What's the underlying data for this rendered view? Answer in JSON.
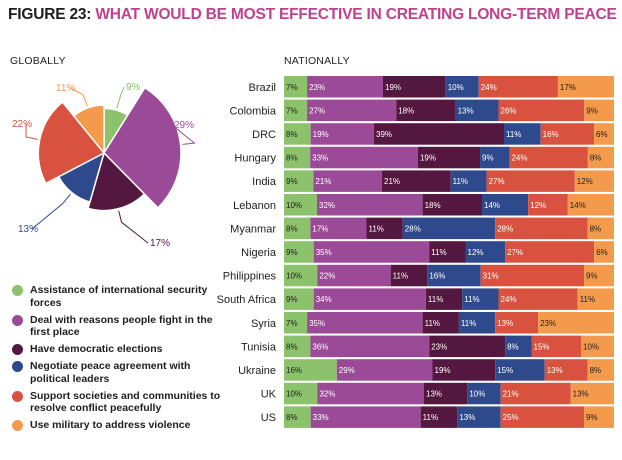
{
  "figure": {
    "number": "FIGURE 23:",
    "title": "WHAT WOULD BE MOST EFFECTIVE IN CREATING LONG-TERM PEACE",
    "globally_label": "GLOBALLY",
    "nationally_label": "NATIONALLY"
  },
  "colors": {
    "title_accent": "#c0418c",
    "assistance": "#8cc26b",
    "deal": "#9b4a97",
    "elections": "#54173f",
    "negotiate": "#2f4a8c",
    "support": "#d9523f",
    "military": "#f39a4c"
  },
  "legend": [
    {
      "key": "assistance",
      "label": "Assistance of international security forces"
    },
    {
      "key": "deal",
      "label": "Deal with reasons people fight in the first place"
    },
    {
      "key": "elections",
      "label": "Have democratic elections"
    },
    {
      "key": "negotiate",
      "label": "Negotiate peace agreement with political leaders"
    },
    {
      "key": "support",
      "label": "Support societies and communities to resolve conflict peacefully"
    },
    {
      "key": "military",
      "label": "Use military to address violence"
    }
  ],
  "chart_data": [
    {
      "type": "pie",
      "title": "GLOBALLY",
      "note": "radial (variable-radius) pie",
      "categories": [
        "Assistance of international security forces",
        "Deal with reasons people fight in the first place",
        "Have democratic elections",
        "Negotiate peace agreement with political leaders",
        "Support societies and communities to resolve conflict peacefully",
        "Use military to address violence"
      ],
      "keys": [
        "assistance",
        "deal",
        "elections",
        "negotiate",
        "support",
        "military"
      ],
      "values": [
        9,
        29,
        17,
        13,
        22,
        11
      ],
      "labels": [
        "9%",
        "29%",
        "17%",
        "13%",
        "22%",
        "11%"
      ]
    },
    {
      "type": "bar",
      "orientation": "horizontal-stacked-100",
      "title": "NATIONALLY",
      "categories": [
        "Brazil",
        "Colombia",
        "DRC",
        "Hungary",
        "India",
        "Lebanon",
        "Myanmar",
        "Nigeria",
        "Philippines",
        "South Africa",
        "Syria",
        "Tunisia",
        "Ukraine",
        "UK",
        "US"
      ],
      "series": [
        {
          "name": "Assistance of international security forces",
          "key": "assistance",
          "values": [
            7,
            7,
            8,
            8,
            9,
            10,
            8,
            9,
            10,
            9,
            7,
            8,
            16,
            10,
            8
          ]
        },
        {
          "name": "Deal with reasons people fight in the first place",
          "key": "deal",
          "values": [
            23,
            27,
            19,
            33,
            21,
            32,
            17,
            35,
            22,
            34,
            35,
            36,
            29,
            32,
            33
          ]
        },
        {
          "name": "Have democratic elections",
          "key": "elections",
          "values": [
            19,
            18,
            39,
            19,
            21,
            18,
            11,
            11,
            11,
            11,
            11,
            23,
            19,
            13,
            11
          ]
        },
        {
          "name": "Negotiate peace agreement with political leaders",
          "key": "negotiate",
          "values": [
            10,
            13,
            11,
            9,
            11,
            14,
            28,
            12,
            16,
            11,
            11,
            8,
            15,
            10,
            13
          ]
        },
        {
          "name": "Support societies and communities to resolve conflict peacefully",
          "key": "support",
          "values": [
            24,
            26,
            16,
            24,
            27,
            12,
            28,
            27,
            31,
            24,
            13,
            15,
            13,
            21,
            25
          ]
        },
        {
          "name": "Use military to address violence",
          "key": "military",
          "values": [
            17,
            9,
            6,
            8,
            12,
            14,
            8,
            6,
            9,
            11,
            23,
            10,
            8,
            13,
            9
          ]
        }
      ],
      "xlim": [
        0,
        100
      ]
    }
  ]
}
